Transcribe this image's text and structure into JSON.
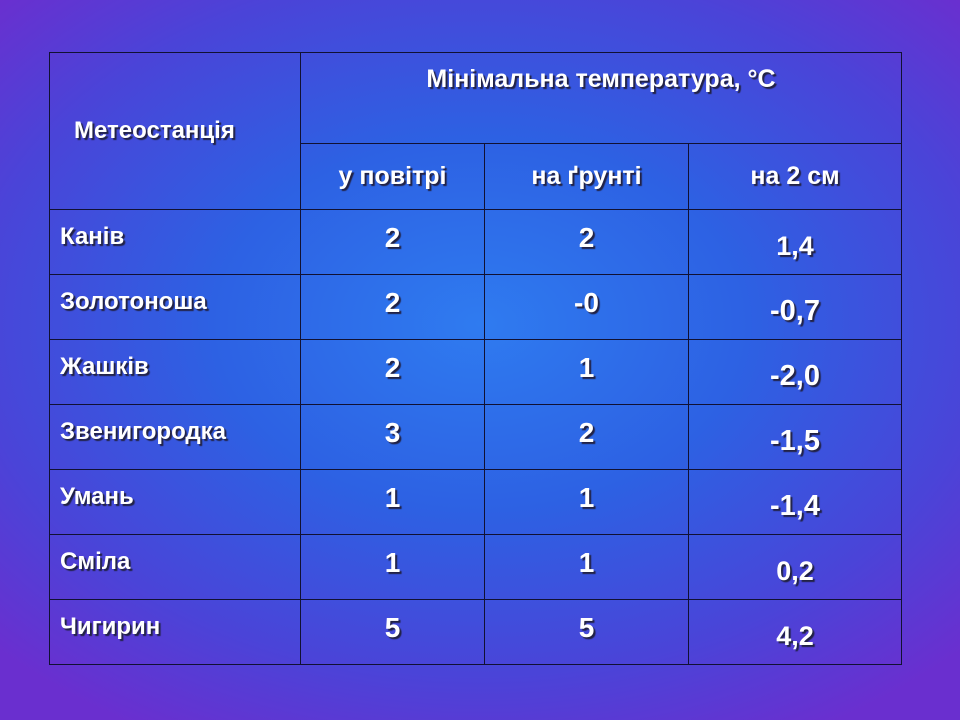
{
  "table": {
    "station_header": "Метеостанція",
    "group_header": "Мінімальна температура, °С",
    "sub_headers": [
      "у повітрі",
      "на ґрунті",
      "на 2 см"
    ],
    "rows": [
      {
        "station": "Канів",
        "air": "2",
        "ground": "2",
        "depth_2cm": "1,4"
      },
      {
        "station": "Золотоноша",
        "air": "2",
        "ground": "-0",
        "depth_2cm": "-0,7"
      },
      {
        "station": "Жашків",
        "air": "2",
        "ground": "1",
        "depth_2cm": "-2,0"
      },
      {
        "station": "Звенигородка",
        "air": "3",
        "ground": "2",
        "depth_2cm": "-1,5"
      },
      {
        "station": "Умань",
        "air": "1",
        "ground": "1",
        "depth_2cm": "-1,4"
      },
      {
        "station": "Сміла",
        "air": "1",
        "ground": "1",
        "depth_2cm": "0,2"
      },
      {
        "station": "Чигирин",
        "air": "5",
        "ground": "5",
        "depth_2cm": "4,2"
      }
    ]
  }
}
